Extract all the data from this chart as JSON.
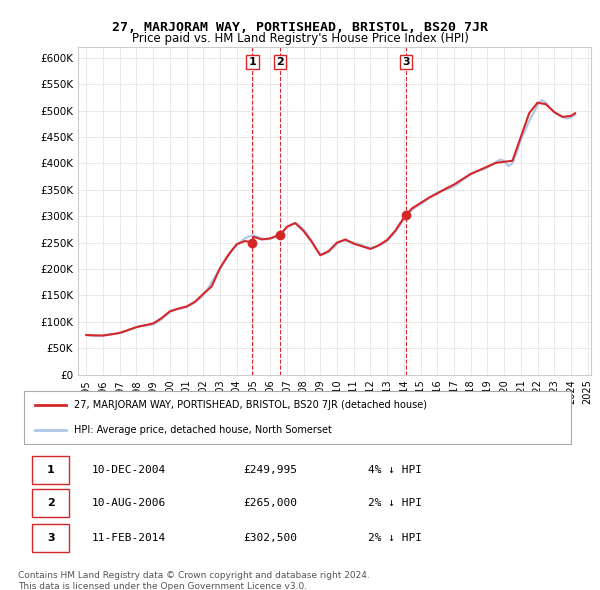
{
  "title": "27, MARJORAM WAY, PORTISHEAD, BRISTOL, BS20 7JR",
  "subtitle": "Price paid vs. HM Land Registry's House Price Index (HPI)",
  "ylabel": "",
  "ylim": [
    0,
    620000
  ],
  "yticks": [
    0,
    50000,
    100000,
    150000,
    200000,
    250000,
    300000,
    350000,
    400000,
    450000,
    500000,
    550000,
    600000
  ],
  "ytick_labels": [
    "£0",
    "£50K",
    "£100K",
    "£150K",
    "£200K",
    "£250K",
    "£300K",
    "£350K",
    "£400K",
    "£450K",
    "£500K",
    "£550K",
    "£600K"
  ],
  "hpi_color": "#aec6e8",
  "price_color": "#d62728",
  "sale_marker_color": "#d62728",
  "vline_color": "#d62728",
  "sales": [
    {
      "year": 2004.94,
      "price": 249995,
      "label": "1"
    },
    {
      "year": 2006.61,
      "price": 265000,
      "label": "2"
    },
    {
      "year": 2014.11,
      "price": 302500,
      "label": "3"
    }
  ],
  "legend_house_label": "27, MARJORAM WAY, PORTISHEAD, BRISTOL, BS20 7JR (detached house)",
  "legend_hpi_label": "HPI: Average price, detached house, North Somerset",
  "table_rows": [
    [
      "1",
      "10-DEC-2004",
      "£249,995",
      "4% ↓ HPI"
    ],
    [
      "2",
      "10-AUG-2006",
      "£265,000",
      "2% ↓ HPI"
    ],
    [
      "3",
      "11-FEB-2014",
      "£302,500",
      "2% ↓ HPI"
    ]
  ],
  "footnote1": "Contains HM Land Registry data © Crown copyright and database right 2024.",
  "footnote2": "This data is licensed under the Open Government Licence v3.0.",
  "hpi_data": {
    "years": [
      1995.0,
      1995.25,
      1995.5,
      1995.75,
      1996.0,
      1996.25,
      1996.5,
      1996.75,
      1997.0,
      1997.25,
      1997.5,
      1997.75,
      1998.0,
      1998.25,
      1998.5,
      1998.75,
      1999.0,
      1999.25,
      1999.5,
      1999.75,
      2000.0,
      2000.25,
      2000.5,
      2000.75,
      2001.0,
      2001.25,
      2001.5,
      2001.75,
      2002.0,
      2002.25,
      2002.5,
      2002.75,
      2003.0,
      2003.25,
      2003.5,
      2003.75,
      2004.0,
      2004.25,
      2004.5,
      2004.75,
      2005.0,
      2005.25,
      2005.5,
      2005.75,
      2006.0,
      2006.25,
      2006.5,
      2006.75,
      2007.0,
      2007.25,
      2007.5,
      2007.75,
      2008.0,
      2008.25,
      2008.5,
      2008.75,
      2009.0,
      2009.25,
      2009.5,
      2009.75,
      2010.0,
      2010.25,
      2010.5,
      2010.75,
      2011.0,
      2011.25,
      2011.5,
      2011.75,
      2012.0,
      2012.25,
      2012.5,
      2012.75,
      2013.0,
      2013.25,
      2013.5,
      2013.75,
      2014.0,
      2014.25,
      2014.5,
      2014.75,
      2015.0,
      2015.25,
      2015.5,
      2015.75,
      2016.0,
      2016.25,
      2016.5,
      2016.75,
      2017.0,
      2017.25,
      2017.5,
      2017.75,
      2018.0,
      2018.25,
      2018.5,
      2018.75,
      2019.0,
      2019.25,
      2019.5,
      2019.75,
      2020.0,
      2020.25,
      2020.5,
      2020.75,
      2021.0,
      2021.25,
      2021.5,
      2021.75,
      2022.0,
      2022.25,
      2022.5,
      2022.75,
      2023.0,
      2023.25,
      2023.5,
      2023.75,
      2024.0,
      2024.25
    ],
    "values": [
      75000,
      74000,
      73000,
      73500,
      74000,
      75000,
      76000,
      77000,
      79000,
      81000,
      84000,
      87000,
      90000,
      92000,
      93000,
      93500,
      95000,
      99000,
      105000,
      112000,
      118000,
      122000,
      124000,
      126000,
      128000,
      132000,
      137000,
      143000,
      151000,
      162000,
      175000,
      188000,
      200000,
      213000,
      225000,
      237000,
      245000,
      252000,
      258000,
      262000,
      263000,
      261000,
      258000,
      256000,
      257000,
      260000,
      265000,
      271000,
      278000,
      284000,
      287000,
      283000,
      275000,
      265000,
      253000,
      238000,
      228000,
      228000,
      232000,
      240000,
      248000,
      252000,
      254000,
      252000,
      250000,
      248000,
      245000,
      242000,
      240000,
      241000,
      244000,
      248000,
      253000,
      261000,
      271000,
      282000,
      294000,
      304000,
      312000,
      318000,
      323000,
      328000,
      334000,
      340000,
      345000,
      348000,
      350000,
      353000,
      357000,
      362000,
      368000,
      374000,
      379000,
      383000,
      386000,
      389000,
      392000,
      397000,
      402000,
      407000,
      405000,
      395000,
      400000,
      420000,
      445000,
      462000,
      480000,
      495000,
      510000,
      520000,
      515000,
      505000,
      498000,
      492000,
      488000,
      485000,
      487000,
      492000
    ]
  },
  "price_line_data": {
    "years": [
      1995.0,
      1996.0,
      1997.0,
      1998.0,
      1999.0,
      1999.5,
      2000.0,
      2000.5,
      2001.0,
      2001.5,
      2002.0,
      2002.5,
      2003.0,
      2003.5,
      2004.0,
      2004.5,
      2004.94,
      2005.0,
      2005.5,
      2006.0,
      2006.61,
      2007.0,
      2007.5,
      2008.0,
      2008.5,
      2009.0,
      2009.5,
      2010.0,
      2010.5,
      2011.0,
      2011.5,
      2012.0,
      2012.5,
      2013.0,
      2013.5,
      2014.11,
      2014.5,
      2015.0,
      2015.5,
      2016.0,
      2016.5,
      2017.0,
      2017.5,
      2018.0,
      2018.5,
      2019.0,
      2019.5,
      2020.0,
      2020.5,
      2021.0,
      2021.5,
      2022.0,
      2022.5,
      2023.0,
      2023.5,
      2024.0,
      2024.25
    ],
    "values": [
      75000,
      74000,
      79000,
      90000,
      97000,
      107000,
      120000,
      125000,
      129000,
      138000,
      153000,
      167000,
      202000,
      227000,
      247000,
      253000,
      249995,
      261000,
      256000,
      258000,
      265000,
      280000,
      287000,
      272000,
      251000,
      226000,
      234000,
      250000,
      256000,
      248000,
      243000,
      238000,
      245000,
      255000,
      273000,
      302500,
      315000,
      325000,
      335000,
      343000,
      352000,
      360000,
      370000,
      380000,
      387000,
      394000,
      401000,
      403000,
      405000,
      450000,
      495000,
      515000,
      512000,
      497000,
      488000,
      490000,
      495000
    ]
  }
}
